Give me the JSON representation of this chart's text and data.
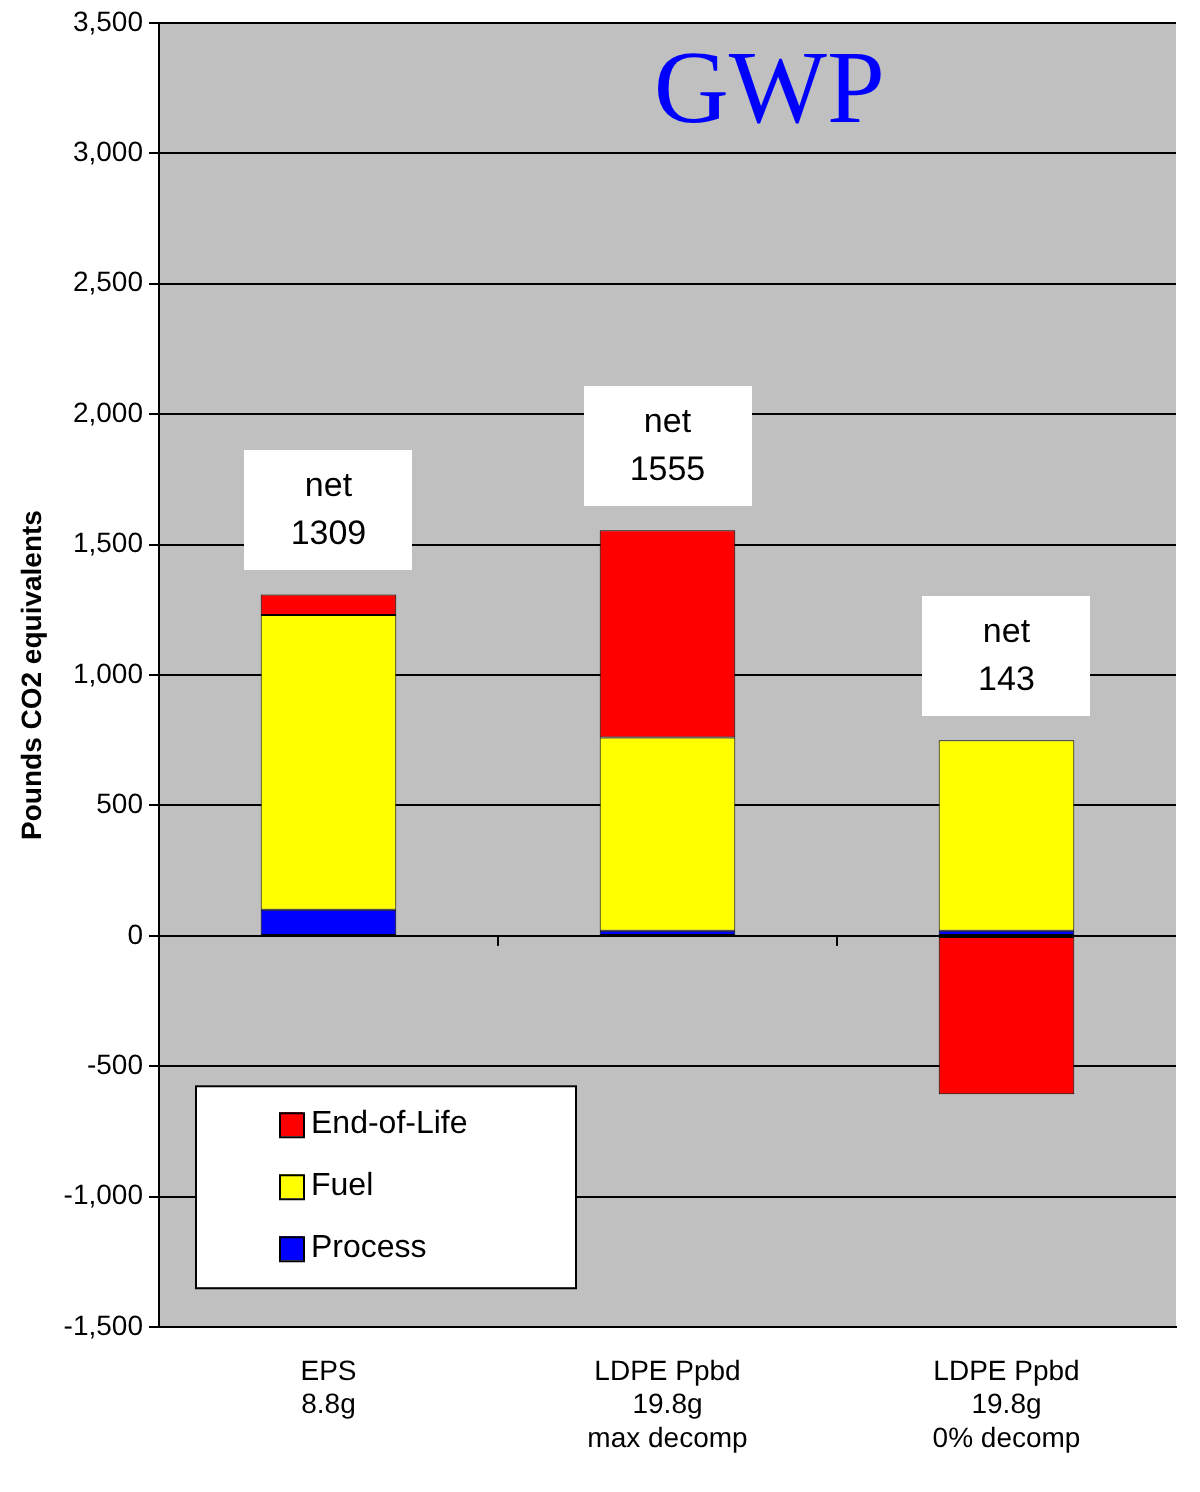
{
  "chart_data": {
    "type": "bar",
    "title": "GWP",
    "ylabel": "Pounds CO2 equivalents",
    "categories": [
      "EPS\n8.8g",
      "LDPE Ppbd\n19.8g\nmax decomp",
      "LDPE Ppbd\n19.8g\n0% decomp"
    ],
    "stacked": true,
    "series": [
      {
        "name": "Process",
        "color": "#0000ff",
        "values": [
          100,
          20,
          20
        ]
      },
      {
        "name": "Fuel",
        "color": "#ffff00",
        "values": [
          1130,
          740,
          730
        ]
      },
      {
        "name": "End-of-Life",
        "color": "#ff0000",
        "values": [
          79,
          795,
          -607
        ]
      }
    ],
    "ylim": [
      -1500,
      3500
    ],
    "yticks": [
      {
        "value": -1500,
        "label": "-1,500"
      },
      {
        "value": -1000,
        "label": "-1,000"
      },
      -500,
      0,
      500,
      {
        "value": 1000,
        "label": "1,000"
      },
      {
        "value": 1500,
        "label": "1,500"
      },
      {
        "value": 2000,
        "label": "2,000"
      },
      {
        "value": 2500,
        "label": "2,500"
      },
      {
        "value": 3000,
        "label": "3,000"
      },
      {
        "value": 3500,
        "label": "3,500"
      }
    ],
    "grid": "y",
    "legend": "bottom left",
    "annotations": [
      "net\n1309",
      "net\n1555",
      "net\n143"
    ]
  }
}
